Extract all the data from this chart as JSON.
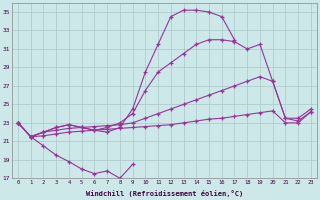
{
  "xlabel": "Windchill (Refroidissement éolien,°C)",
  "background_color": "#cce8e8",
  "grid_color": "#aac8c8",
  "line_color": "#993399",
  "xlim": [
    -0.5,
    23.5
  ],
  "ylim": [
    17,
    36
  ],
  "xticks": [
    0,
    1,
    2,
    3,
    4,
    5,
    6,
    7,
    8,
    9,
    10,
    11,
    12,
    13,
    14,
    15,
    16,
    17,
    18,
    19,
    20,
    21,
    22,
    23
  ],
  "yticks": [
    17,
    19,
    21,
    23,
    25,
    27,
    29,
    31,
    33,
    35
  ],
  "line_bottom": {
    "x": [
      0,
      1,
      2,
      3,
      4,
      5,
      6,
      7,
      8,
      9
    ],
    "y": [
      23.0,
      21.5,
      20.5,
      19.5,
      18.8,
      18.0,
      17.5,
      17.8,
      17.0,
      18.5
    ]
  },
  "line_upper": {
    "x": [
      0,
      1,
      2,
      3,
      4,
      5,
      6,
      7,
      8,
      9,
      10,
      11,
      12,
      13,
      14,
      15,
      16,
      17
    ],
    "y": [
      23.0,
      21.5,
      22.0,
      22.5,
      22.8,
      22.5,
      22.2,
      22.0,
      22.5,
      24.5,
      28.5,
      31.5,
      34.5,
      35.2,
      35.2,
      35.0,
      34.5,
      32.0
    ]
  },
  "line_mid_upper": {
    "x": [
      0,
      1,
      2,
      3,
      4,
      5,
      6,
      7,
      8,
      9,
      10,
      11,
      12,
      13,
      14,
      15,
      16,
      17,
      18,
      19,
      20,
      21,
      22,
      23
    ],
    "y": [
      23.0,
      21.5,
      22.0,
      22.5,
      22.8,
      22.5,
      22.2,
      22.5,
      23.0,
      24.0,
      26.5,
      28.5,
      29.5,
      30.5,
      31.5,
      32.0,
      32.0,
      31.8,
      31.0,
      31.5,
      27.5,
      23.5,
      23.5,
      24.5
    ]
  },
  "line_mid": {
    "x": [
      0,
      1,
      2,
      3,
      4,
      5,
      6,
      7,
      8,
      9,
      10,
      11,
      12,
      13,
      14,
      15,
      16,
      17,
      18,
      19,
      20,
      21,
      22,
      23
    ],
    "y": [
      23.0,
      21.5,
      22.0,
      22.2,
      22.4,
      22.5,
      22.6,
      22.7,
      22.8,
      23.0,
      23.5,
      24.0,
      24.5,
      25.0,
      25.5,
      26.0,
      26.5,
      27.0,
      27.5,
      28.0,
      27.5,
      23.5,
      23.2,
      24.2
    ]
  },
  "line_low": {
    "x": [
      0,
      1,
      2,
      3,
      4,
      5,
      6,
      7,
      8,
      9,
      10,
      11,
      12,
      13,
      14,
      15,
      16,
      17,
      18,
      19,
      20,
      21,
      22,
      23
    ],
    "y": [
      23.0,
      21.5,
      21.6,
      21.8,
      22.0,
      22.1,
      22.2,
      22.3,
      22.4,
      22.5,
      22.6,
      22.7,
      22.8,
      23.0,
      23.2,
      23.4,
      23.5,
      23.7,
      23.9,
      24.1,
      24.3,
      23.0,
      23.0,
      24.2
    ]
  }
}
